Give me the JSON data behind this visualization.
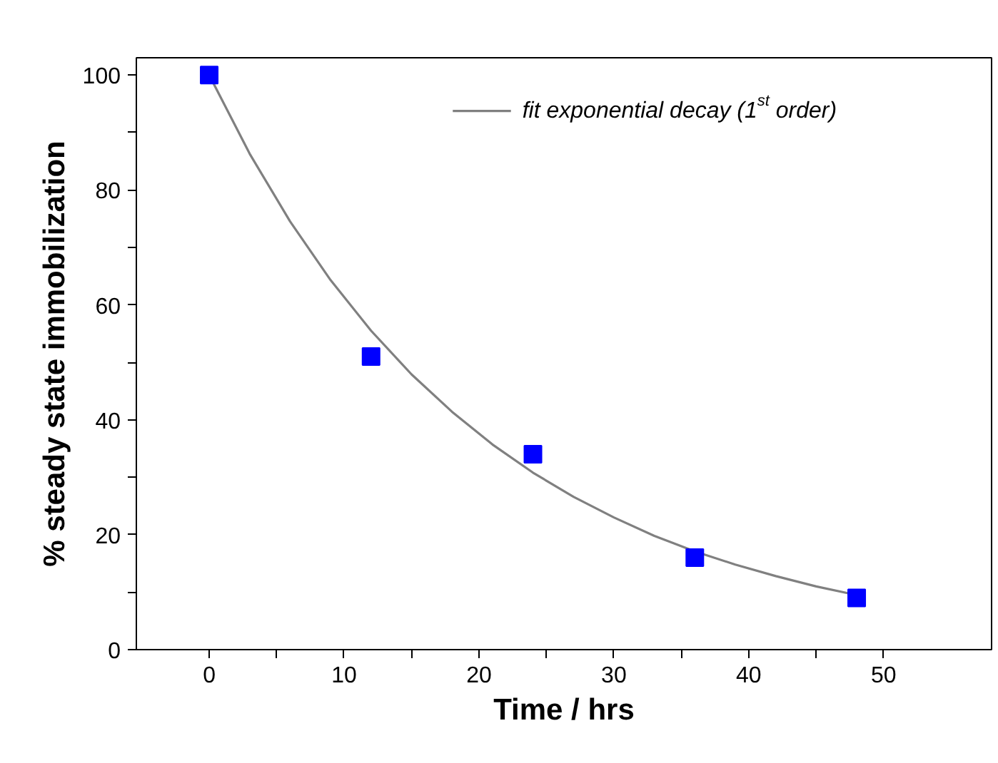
{
  "chart_data": {
    "type": "scatter",
    "xlabel": "Time / hrs",
    "ylabel": "% steady state immobilization",
    "xlim": [
      -5.4,
      58
    ],
    "ylim": [
      0,
      103
    ],
    "xticks": [
      0,
      {
        "value": 5,
        "label": null
      },
      10,
      {
        "value": 15,
        "label": null
      },
      20,
      {
        "value": 25,
        "label": null
      },
      30,
      {
        "value": 35,
        "label": null
      },
      40,
      {
        "value": 45,
        "label": null
      },
      50
    ],
    "yticks": [
      0,
      {
        "value": 10,
        "label": null
      },
      20,
      {
        "value": 30,
        "label": null
      },
      40,
      {
        "value": 50,
        "label": null
      },
      60,
      {
        "value": 70,
        "label": null
      },
      80,
      {
        "value": 90,
        "label": null
      },
      100
    ],
    "grid": false,
    "legend": "top right",
    "series": [
      {
        "marker": "square",
        "color": "#0000ff",
        "x": [
          0,
          12,
          24,
          36,
          48
        ],
        "values": [
          100,
          51,
          34,
          16,
          9
        ]
      },
      {
        "type": "line",
        "name": "fit exponential decay (1$^{st}$ order)",
        "color": "#808080",
        "line_style": "solid",
        "x": [
          0,
          3,
          6,
          9,
          12,
          15,
          18,
          21,
          24,
          27,
          30,
          33,
          36,
          39,
          42,
          45,
          48
        ],
        "values": [
          100,
          86.3,
          74.5,
          64.3,
          55.5,
          47.9,
          41.4,
          35.7,
          30.8,
          26.6,
          23.0,
          19.8,
          17.1,
          14.8,
          12.8,
          11.0,
          9.5
        ]
      }
    ]
  }
}
